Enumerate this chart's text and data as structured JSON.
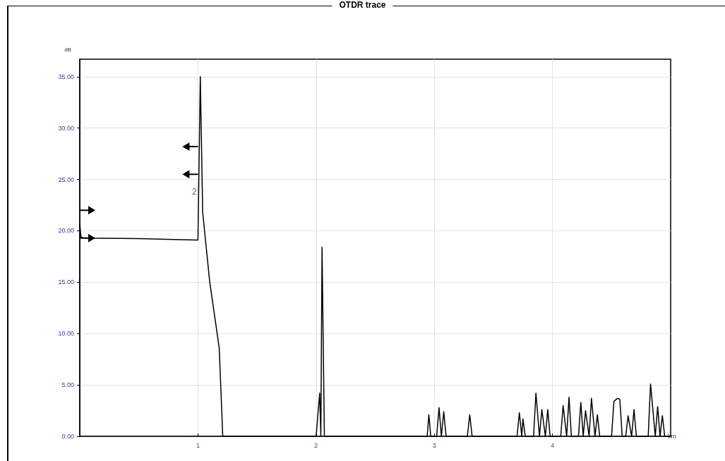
{
  "chart_data": {
    "type": "line",
    "title": "OTDR trace",
    "xlabel": "km",
    "ylabel": "dB",
    "xlim": [
      0,
      5
    ],
    "xticks": [
      1,
      2,
      3,
      4
    ],
    "ylim": [
      0,
      36.7
    ],
    "yticks": [
      {
        "value": 0,
        "label": "0.00"
      },
      {
        "value": 5,
        "label": "5.00"
      },
      {
        "value": 10,
        "label": "10.00"
      },
      {
        "value": 15,
        "label": "15.00"
      },
      {
        "value": 20,
        "label": "20.00"
      },
      {
        "value": 25,
        "label": "25.00"
      },
      {
        "value": 30,
        "label": "30.00"
      },
      {
        "value": 35,
        "label": "35.00"
      }
    ],
    "grid": true,
    "marker": "none",
    "line_style": "solid",
    "annotations": [
      {
        "text": "2",
        "x": 0.97,
        "y": 23.8
      }
    ],
    "series": [
      {
        "color": "#000000",
        "x": [
          0,
          0.01,
          0.03,
          0.5,
          0.99,
          1.0,
          1.02,
          1.04,
          1.1,
          1.18,
          1.21,
          2.0,
          2.03,
          2.04,
          2.05,
          2.07,
          2.09,
          2.94,
          2.954,
          2.97,
          3.02,
          3.04,
          3.06,
          3.08,
          3.1,
          3.28,
          3.3,
          3.32,
          3.7,
          3.72,
          3.74,
          3.75,
          3.77,
          3.84,
          3.86,
          3.89,
          3.91,
          3.94,
          3.96,
          3.98,
          4.07,
          4.09,
          4.12,
          4.14,
          4.16,
          4.22,
          4.24,
          4.26,
          4.28,
          4.31,
          4.33,
          4.36,
          4.38,
          4.4,
          4.5,
          4.52,
          4.55,
          4.57,
          4.59,
          4.62,
          4.64,
          4.67,
          4.69,
          4.71,
          4.81,
          4.83,
          4.87,
          4.89,
          4.91,
          4.93,
          4.95,
          5.0
        ],
        "values": [
          20.7,
          19.4,
          19.3,
          19.25,
          19.1,
          19.1,
          35,
          21.8,
          15.0,
          8.6,
          0,
          0,
          4.2,
          0,
          18.4,
          0,
          0,
          0,
          2.1,
          0,
          0,
          2.8,
          0,
          2.4,
          0,
          0,
          2.1,
          0,
          0,
          2.3,
          0,
          1.7,
          0,
          0,
          4.2,
          0,
          2.6,
          0,
          2.6,
          0,
          0,
          3.0,
          0,
          3.8,
          0,
          0,
          3.3,
          0,
          2.5,
          0,
          3.7,
          0,
          2.1,
          0,
          0,
          3.4,
          3.7,
          3.6,
          0,
          0,
          2.0,
          0,
          2.6,
          0,
          0,
          5.1,
          0,
          2.9,
          0,
          2.0,
          0,
          0
        ]
      }
    ]
  }
}
